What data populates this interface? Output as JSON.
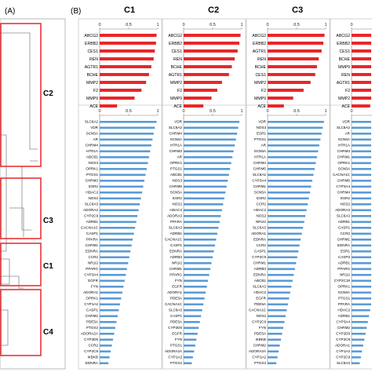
{
  "panel_labels": {
    "a": "(A)",
    "b": "(B)"
  },
  "dendrogram": {
    "clusters": [
      "C2",
      "C3",
      "C1",
      "C4"
    ],
    "box_color": "#e8262a"
  },
  "colors": {
    "top_bar": "#e8262a",
    "bottom_bar": "#5b9bd5",
    "axis": "#808080",
    "text": "#000000"
  },
  "chart_data": [
    {
      "type": "bar",
      "orientation": "horizontal",
      "panel": "top",
      "title": "C1",
      "xlim": [
        0,
        1
      ],
      "xticks": [
        "0",
        "0.5",
        "1"
      ],
      "categories": [
        "ABCG2",
        "ERBB2",
        "CES1",
        "REN",
        "AGTR1",
        "BCHE",
        "MMP2",
        "F2",
        "MMP9",
        "ACE"
      ],
      "values": [
        0.98,
        0.97,
        0.95,
        0.93,
        0.89,
        0.85,
        0.8,
        0.72,
        0.6,
        0.3
      ]
    },
    {
      "type": "bar",
      "orientation": "horizontal",
      "panel": "top",
      "title": "C2",
      "xlim": [
        0,
        1
      ],
      "xticks": [
        "0",
        "0.5",
        "1"
      ],
      "categories": [
        "ABCG2",
        "ERBB2",
        "CES1",
        "REN",
        "BCHE",
        "AGTR1",
        "MMP2",
        "F2",
        "MMP9",
        "ACE"
      ],
      "values": [
        0.98,
        0.96,
        0.93,
        0.88,
        0.83,
        0.78,
        0.66,
        0.58,
        0.48,
        0.34
      ]
    },
    {
      "type": "bar",
      "orientation": "horizontal",
      "panel": "top",
      "title": "C3",
      "xlim": [
        0,
        1
      ],
      "xticks": [
        "0",
        "0.5",
        "1"
      ],
      "categories": [
        "ABCG2",
        "ERBB2",
        "AGTR1",
        "REN",
        "BCHE",
        "CES1",
        "MMP2",
        "F2",
        "MMP9",
        "ACE"
      ],
      "values": [
        0.98,
        0.96,
        0.93,
        0.88,
        0.85,
        0.82,
        0.74,
        0.62,
        0.44,
        0.28
      ]
    },
    {
      "type": "bar",
      "orientation": "horizontal",
      "panel": "top",
      "title": "C4",
      "xlim": [
        0,
        1
      ],
      "xticks": [
        "0"
      ],
      "categories": [
        "ABCG2",
        "ERBB2",
        "CES1",
        "BCHE",
        "MMP9",
        "REN",
        "AGTR1",
        "F2",
        "MMP2",
        "ACE"
      ],
      "values": [
        0.98,
        0.96,
        0.94,
        0.9,
        0.86,
        0.82,
        0.76,
        0.66,
        0.52,
        0.32
      ]
    },
    {
      "type": "bar",
      "orientation": "horizontal",
      "panel": "bottom",
      "title": "C1",
      "xlim": [
        0,
        1
      ],
      "xticks": [
        "0",
        "0.5",
        "1"
      ],
      "categories": [
        "SLC6A2",
        "VDR",
        "SCN5A",
        "AR",
        "CHRM4",
        "HTR1A",
        "ABCB1",
        "NOS3",
        "OPRK1",
        "PTGS1",
        "CHRM3",
        "ESR2",
        "HDAC2",
        "NOS2",
        "SLC6A3",
        "ADORA3",
        "CYP2C9",
        "ADRB1",
        "CACNA1C",
        "CASP1",
        "PPARA",
        "CHRM1",
        "EDNRA",
        "CCR2",
        "NR1I2",
        "PPARG",
        "CYP3A4",
        "EGFR",
        "FYN",
        "ADORA1",
        "OPRK1",
        "CYP1A2",
        "CASP1",
        "CHRM2",
        "PDE5A",
        "PTGS2",
        "ADORA2A",
        "CYP2D6",
        "CCR2",
        "CYP2C9",
        "IKBKB",
        "EDNRA"
      ],
      "values": [
        0.98,
        0.95,
        0.93,
        0.91,
        0.89,
        0.87,
        0.85,
        0.83,
        0.81,
        0.79,
        0.77,
        0.75,
        0.73,
        0.71,
        0.69,
        0.67,
        0.65,
        0.63,
        0.61,
        0.59,
        0.57,
        0.55,
        0.53,
        0.51,
        0.49,
        0.47,
        0.45,
        0.43,
        0.41,
        0.39,
        0.37,
        0.35,
        0.33,
        0.31,
        0.29,
        0.27,
        0.25,
        0.23,
        0.21,
        0.19,
        0.17,
        0.15
      ]
    },
    {
      "type": "bar",
      "orientation": "horizontal",
      "panel": "bottom",
      "title": "C2",
      "xlim": [
        0,
        1
      ],
      "xticks": [
        "0",
        "0.5",
        "1"
      ],
      "categories": [
        "VDR",
        "SLC6A2",
        "CHRM4",
        "SCN5A",
        "HTR1A",
        "CHRM3",
        "AR",
        "OPRK1",
        "PTGS1",
        "ABCB1",
        "NOS3",
        "CHRM5",
        "SCN5A",
        "ESR2",
        "NOS2",
        "HDAC2",
        "ADORA3",
        "PPARA",
        "SLC6A3",
        "ADRB1",
        "CACNA1C",
        "CASP1",
        "EDNRA",
        "ADRB3",
        "NR1I2",
        "CHRM1",
        "PPARG",
        "FYN",
        "EGFR",
        "ADORA1",
        "PDE5A",
        "CACNA1C",
        "SLC6A3",
        "CASP1",
        "PDE5A",
        "CYP2D6",
        "EGFR",
        "FYN",
        "PTGS1",
        "ADORA2A",
        "CYP1A2",
        "PTGS2"
      ],
      "values": [
        0.96,
        0.94,
        0.92,
        0.9,
        0.88,
        0.86,
        0.84,
        0.82,
        0.8,
        0.78,
        0.76,
        0.74,
        0.72,
        0.7,
        0.68,
        0.66,
        0.64,
        0.62,
        0.6,
        0.58,
        0.56,
        0.54,
        0.52,
        0.5,
        0.48,
        0.46,
        0.44,
        0.42,
        0.4,
        0.38,
        0.36,
        0.34,
        0.32,
        0.3,
        0.28,
        0.26,
        0.24,
        0.22,
        0.2,
        0.18,
        0.16,
        0.14
      ]
    },
    {
      "type": "bar",
      "orientation": "horizontal",
      "panel": "bottom",
      "title": "C3",
      "xlim": [
        0,
        1
      ],
      "xticks": [
        "0",
        "0.5",
        "1"
      ],
      "categories": [
        "VDR",
        "NOS3",
        "ESR1",
        "PTGS1",
        "AR",
        "SCN5A",
        "HTR1A",
        "CHRM4",
        "CHRM5",
        "SLC6A2",
        "CYP3A4",
        "CHRM1",
        "SCN5A",
        "ESR2",
        "CCR2",
        "HDAC2",
        "NOS2",
        "NR1I2",
        "SLC6A3",
        "ADORA1",
        "EDNRA",
        "CCR2",
        "CASP1",
        "CYP2C9",
        "CHRM1",
        "ADRB3",
        "EDNRA",
        "ABCB1",
        "SLC6A3",
        "HDAC2",
        "EGFR",
        "PDE5A",
        "CACNA1C",
        "NOS2",
        "CYP2C9",
        "FYN",
        "PDE5A",
        "IKBKB",
        "CHRM2",
        "ADORA2A",
        "CYP1A2",
        "PTGS2"
      ],
      "values": [
        0.97,
        0.95,
        0.93,
        0.91,
        0.89,
        0.87,
        0.85,
        0.83,
        0.81,
        0.79,
        0.77,
        0.75,
        0.73,
        0.71,
        0.69,
        0.67,
        0.65,
        0.63,
        0.61,
        0.59,
        0.57,
        0.55,
        0.53,
        0.51,
        0.49,
        0.47,
        0.45,
        0.43,
        0.41,
        0.39,
        0.37,
        0.35,
        0.33,
        0.31,
        0.29,
        0.27,
        0.25,
        0.23,
        0.21,
        0.19,
        0.17,
        0.15
      ]
    },
    {
      "type": "bar",
      "orientation": "horizontal",
      "panel": "bottom",
      "title": "C4",
      "xlim": [
        0,
        1
      ],
      "xticks": [
        "0"
      ],
      "categories": [
        "VDR",
        "SLC6A2",
        "AR",
        "SCN5A",
        "HTR1A",
        "CHRM3",
        "CHRM1",
        "OPRK1",
        "SCN5A",
        "CACNA1C",
        "CHRM5",
        "CYP3A4",
        "CHRM4",
        "ESR2",
        "NOS2",
        "ADORA3",
        "SLC6A3",
        "ADRB1",
        "CASP1",
        "CCR2",
        "CHRM1",
        "EDNRA",
        "ESR1",
        "CASP3",
        "ADRB1",
        "PPARG",
        "NR1I2",
        "CYP2C19",
        "OPRK1",
        "SCN5A",
        "PTGS1",
        "PPARA",
        "HDAC2",
        "ADRB1",
        "CYP3A4",
        "CHRM2",
        "CYP2D6",
        "CYP2C9",
        "ADORA1",
        "CYP1A2",
        "CYP2C9",
        "SLC6A3"
      ],
      "values": [
        0.96,
        0.94,
        0.92,
        0.9,
        0.88,
        0.86,
        0.84,
        0.82,
        0.8,
        0.78,
        0.76,
        0.74,
        0.72,
        0.7,
        0.68,
        0.66,
        0.64,
        0.62,
        0.6,
        0.58,
        0.56,
        0.54,
        0.52,
        0.5,
        0.48,
        0.46,
        0.44,
        0.42,
        0.4,
        0.38,
        0.36,
        0.34,
        0.32,
        0.3,
        0.28,
        0.26,
        0.24,
        0.22,
        0.2,
        0.18,
        0.16,
        0.14
      ]
    }
  ]
}
